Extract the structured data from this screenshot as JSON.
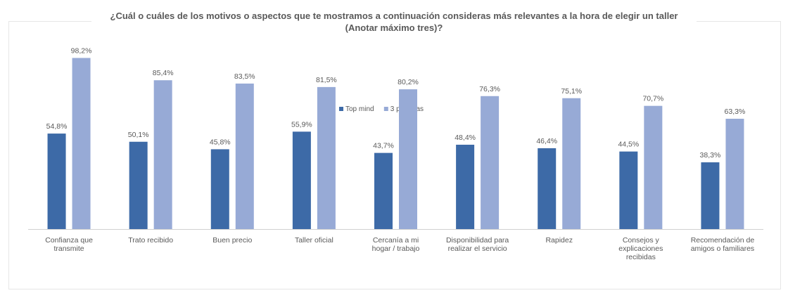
{
  "chart_data": {
    "type": "bar",
    "title": "¿Cuál o cuáles de los motivos o aspectos que te mostramos a continuación consideras más relevantes a la hora de elegir un taller (Anotar máximo tres)?",
    "categories": [
      [
        "Confianza que",
        "transmite"
      ],
      [
        "Trato recibido"
      ],
      [
        "Buen precio"
      ],
      [
        "Taller oficial"
      ],
      [
        "Cercanía a mi",
        "hogar / trabajo"
      ],
      [
        "Disponibilidad para",
        "realizar el servicio"
      ],
      [
        "Rapidez"
      ],
      [
        "Consejos y",
        "explicaciones",
        "recibidas"
      ],
      [
        "Recomendación de",
        "amigos o familiares"
      ]
    ],
    "series": [
      {
        "name": "Top mind",
        "color": "#3d6aa7",
        "values": [
          54.8,
          50.1,
          45.8,
          55.9,
          43.7,
          48.4,
          46.4,
          44.5,
          38.3
        ],
        "labels": [
          "54,8%",
          "50,1%",
          "45,8%",
          "55,9%",
          "43,7%",
          "48,4%",
          "46,4%",
          "44,5%",
          "38,3%"
        ]
      },
      {
        "name": "3 primeras",
        "color": "#97aad6",
        "values": [
          98.2,
          85.4,
          83.5,
          81.5,
          80.2,
          76.3,
          75.1,
          70.7,
          63.3
        ],
        "labels": [
          "98,2%",
          "85,4%",
          "83,5%",
          "81,5%",
          "80,2%",
          "76,3%",
          "75,1%",
          "70,7%",
          "63,3%"
        ]
      }
    ],
    "ylim": [
      0,
      100
    ],
    "grid": false,
    "legend_position": "top-center",
    "xlabel": "",
    "ylabel": ""
  }
}
